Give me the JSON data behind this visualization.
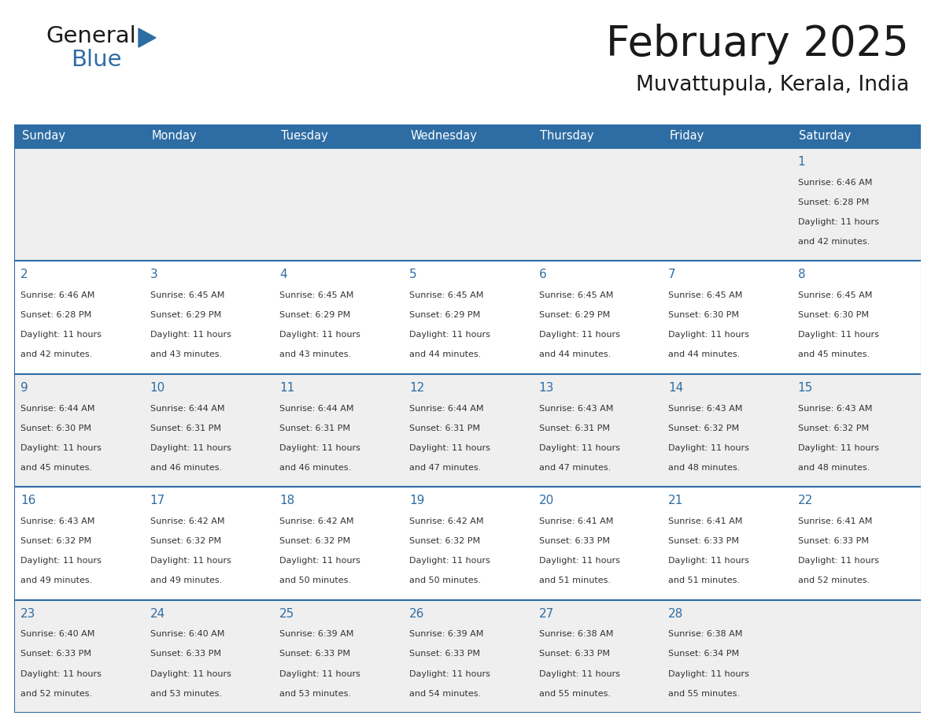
{
  "title": "February 2025",
  "subtitle": "Muvattupula, Kerala, India",
  "days_of_week": [
    "Sunday",
    "Monday",
    "Tuesday",
    "Wednesday",
    "Thursday",
    "Friday",
    "Saturday"
  ],
  "header_bg": "#2e6da4",
  "header_text": "#ffffff",
  "cell_bg_odd": "#efefef",
  "cell_bg_even": "#ffffff",
  "border_color": "#2e6da4",
  "text_color": "#333333",
  "day_number_color": "#2e6da4",
  "title_color": "#1a1a1a",
  "logo_general_color": "#1a1a1a",
  "logo_blue_color": "#2e6da4",
  "logo_triangle_color": "#2e6da4",
  "calendar_data": [
    [
      null,
      null,
      null,
      null,
      null,
      null,
      {
        "day": 1,
        "sunrise": "6:46 AM",
        "sunset": "6:28 PM",
        "daylight": "11 hours and 42 minutes."
      }
    ],
    [
      {
        "day": 2,
        "sunrise": "6:46 AM",
        "sunset": "6:28 PM",
        "daylight": "11 hours and 42 minutes."
      },
      {
        "day": 3,
        "sunrise": "6:45 AM",
        "sunset": "6:29 PM",
        "daylight": "11 hours and 43 minutes."
      },
      {
        "day": 4,
        "sunrise": "6:45 AM",
        "sunset": "6:29 PM",
        "daylight": "11 hours and 43 minutes."
      },
      {
        "day": 5,
        "sunrise": "6:45 AM",
        "sunset": "6:29 PM",
        "daylight": "11 hours and 44 minutes."
      },
      {
        "day": 6,
        "sunrise": "6:45 AM",
        "sunset": "6:29 PM",
        "daylight": "11 hours and 44 minutes."
      },
      {
        "day": 7,
        "sunrise": "6:45 AM",
        "sunset": "6:30 PM",
        "daylight": "11 hours and 44 minutes."
      },
      {
        "day": 8,
        "sunrise": "6:45 AM",
        "sunset": "6:30 PM",
        "daylight": "11 hours and 45 minutes."
      }
    ],
    [
      {
        "day": 9,
        "sunrise": "6:44 AM",
        "sunset": "6:30 PM",
        "daylight": "11 hours and 45 minutes."
      },
      {
        "day": 10,
        "sunrise": "6:44 AM",
        "sunset": "6:31 PM",
        "daylight": "11 hours and 46 minutes."
      },
      {
        "day": 11,
        "sunrise": "6:44 AM",
        "sunset": "6:31 PM",
        "daylight": "11 hours and 46 minutes."
      },
      {
        "day": 12,
        "sunrise": "6:44 AM",
        "sunset": "6:31 PM",
        "daylight": "11 hours and 47 minutes."
      },
      {
        "day": 13,
        "sunrise": "6:43 AM",
        "sunset": "6:31 PM",
        "daylight": "11 hours and 47 minutes."
      },
      {
        "day": 14,
        "sunrise": "6:43 AM",
        "sunset": "6:32 PM",
        "daylight": "11 hours and 48 minutes."
      },
      {
        "day": 15,
        "sunrise": "6:43 AM",
        "sunset": "6:32 PM",
        "daylight": "11 hours and 48 minutes."
      }
    ],
    [
      {
        "day": 16,
        "sunrise": "6:43 AM",
        "sunset": "6:32 PM",
        "daylight": "11 hours and 49 minutes."
      },
      {
        "day": 17,
        "sunrise": "6:42 AM",
        "sunset": "6:32 PM",
        "daylight": "11 hours and 49 minutes."
      },
      {
        "day": 18,
        "sunrise": "6:42 AM",
        "sunset": "6:32 PM",
        "daylight": "11 hours and 50 minutes."
      },
      {
        "day": 19,
        "sunrise": "6:42 AM",
        "sunset": "6:32 PM",
        "daylight": "11 hours and 50 minutes."
      },
      {
        "day": 20,
        "sunrise": "6:41 AM",
        "sunset": "6:33 PM",
        "daylight": "11 hours and 51 minutes."
      },
      {
        "day": 21,
        "sunrise": "6:41 AM",
        "sunset": "6:33 PM",
        "daylight": "11 hours and 51 minutes."
      },
      {
        "day": 22,
        "sunrise": "6:41 AM",
        "sunset": "6:33 PM",
        "daylight": "11 hours and 52 minutes."
      }
    ],
    [
      {
        "day": 23,
        "sunrise": "6:40 AM",
        "sunset": "6:33 PM",
        "daylight": "11 hours and 52 minutes."
      },
      {
        "day": 24,
        "sunrise": "6:40 AM",
        "sunset": "6:33 PM",
        "daylight": "11 hours and 53 minutes."
      },
      {
        "day": 25,
        "sunrise": "6:39 AM",
        "sunset": "6:33 PM",
        "daylight": "11 hours and 53 minutes."
      },
      {
        "day": 26,
        "sunrise": "6:39 AM",
        "sunset": "6:33 PM",
        "daylight": "11 hours and 54 minutes."
      },
      {
        "day": 27,
        "sunrise": "6:38 AM",
        "sunset": "6:33 PM",
        "daylight": "11 hours and 55 minutes."
      },
      {
        "day": 28,
        "sunrise": "6:38 AM",
        "sunset": "6:34 PM",
        "daylight": "11 hours and 55 minutes."
      },
      null
    ]
  ]
}
